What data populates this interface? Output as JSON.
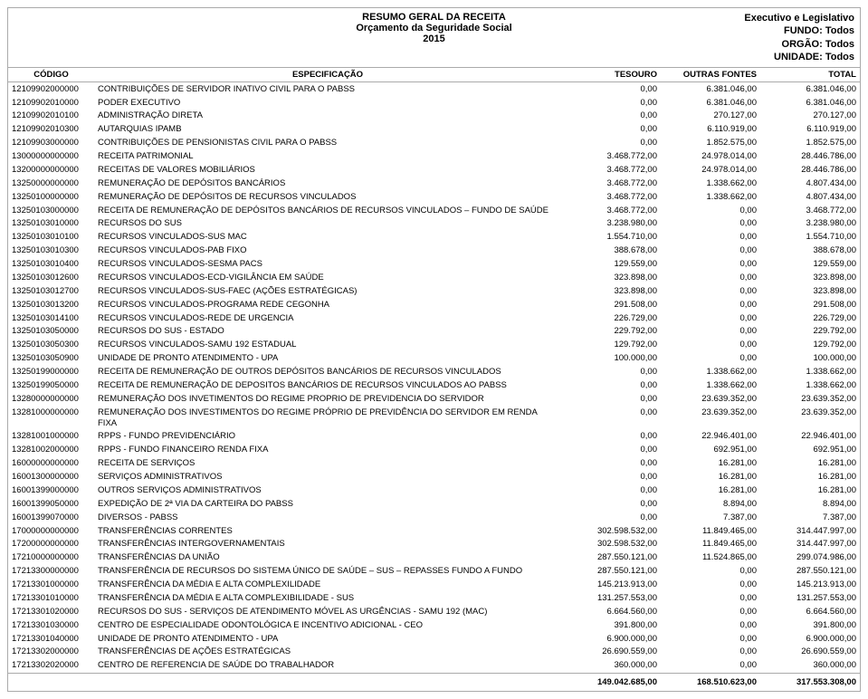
{
  "header": {
    "title1": "RESUMO GERAL DA RECEITA",
    "title2": "Orçamento da Seguridade Social",
    "year": "2015",
    "right1": "Executivo e Legislativo",
    "right2": "FUNDO: Todos",
    "right3": "ORGÃO: Todos",
    "right4": "UNIDADE: Todos"
  },
  "columns": {
    "codigo": "CÓDIGO",
    "espec": "ESPECIFICAÇÃO",
    "tesouro": "TESOURO",
    "outras": "OUTRAS FONTES",
    "total": "TOTAL"
  },
  "rows": [
    {
      "c": "12109902000000",
      "e": "CONTRIBUIÇÕES DE SERVIDOR INATIVO CIVIL PARA O PABSS",
      "t": "0,00",
      "o": "6.381.046,00",
      "x": "6.381.046,00"
    },
    {
      "c": "12109902010000",
      "e": "PODER  EXECUTIVO",
      "t": "0,00",
      "o": "6.381.046,00",
      "x": "6.381.046,00"
    },
    {
      "c": "12109902010100",
      "e": "ADMINISTRAÇÃO DIRETA",
      "t": "0,00",
      "o": "270.127,00",
      "x": "270.127,00"
    },
    {
      "c": "12109902010300",
      "e": "AUTARQUIAS  IPAMB",
      "t": "0,00",
      "o": "6.110.919,00",
      "x": "6.110.919,00"
    },
    {
      "c": "12109903000000",
      "e": "CONTRIBUIÇÕES DE PENSIONISTAS  CIVIL  PARA  O  PABSS",
      "t": "0,00",
      "o": "1.852.575,00",
      "x": "1.852.575,00"
    },
    {
      "c": "13000000000000",
      "e": "RECEITA PATRIMONIAL",
      "t": "3.468.772,00",
      "o": "24.978.014,00",
      "x": "28.446.786,00"
    },
    {
      "c": "13200000000000",
      "e": "RECEITAS DE VALORES MOBILIÁRIOS",
      "t": "3.468.772,00",
      "o": "24.978.014,00",
      "x": "28.446.786,00"
    },
    {
      "c": "13250000000000",
      "e": "REMUNERAÇÃO DE DEPÓSITOS BANCÁRIOS",
      "t": "3.468.772,00",
      "o": "1.338.662,00",
      "x": "4.807.434,00"
    },
    {
      "c": "13250100000000",
      "e": "REMUNERAÇÃO DE DEPÓSITOS DE RECURSOS VINCULADOS",
      "t": "3.468.772,00",
      "o": "1.338.662,00",
      "x": "4.807.434,00"
    },
    {
      "c": "13250103000000",
      "e": "RECEITA DE REMUNERAÇÃO DE DEPÓSITOS BANCÁRIOS DE RECURSOS VINCULADOS – FUNDO DE  SAÚDE",
      "t": "3.468.772,00",
      "o": "0,00",
      "x": "3.468.772,00"
    },
    {
      "c": "13250103010000",
      "e": "RECURSOS DO SUS",
      "t": "3.238.980,00",
      "o": "0,00",
      "x": "3.238.980,00"
    },
    {
      "c": "13250103010100",
      "e": "RECURSOS VINCULADOS-SUS MAC",
      "t": "1.554.710,00",
      "o": "0,00",
      "x": "1.554.710,00"
    },
    {
      "c": "13250103010300",
      "e": "RECURSOS VINCULADOS-PAB FIXO",
      "t": "388.678,00",
      "o": "0,00",
      "x": "388.678,00"
    },
    {
      "c": "13250103010400",
      "e": "RECURSOS VINCULADOS-SESMA PACS",
      "t": "129.559,00",
      "o": "0,00",
      "x": "129.559,00"
    },
    {
      "c": "13250103012600",
      "e": "RECURSOS VINCULADOS-ECD-VIGILÂNCIA EM SAÚDE",
      "t": "323.898,00",
      "o": "0,00",
      "x": "323.898,00"
    },
    {
      "c": "13250103012700",
      "e": "RECURSOS VINCULADOS-SUS-FAEC (AÇÕES ESTRATÉGICAS)",
      "t": "323.898,00",
      "o": "0,00",
      "x": "323.898,00"
    },
    {
      "c": "13250103013200",
      "e": "RECURSOS VINCULADOS-PROGRAMA REDE CEGONHA",
      "t": "291.508,00",
      "o": "0,00",
      "x": "291.508,00"
    },
    {
      "c": "13250103014100",
      "e": "RECURSOS VINCULADOS-REDE DE URGENCIA",
      "t": "226.729,00",
      "o": "0,00",
      "x": "226.729,00"
    },
    {
      "c": "13250103050000",
      "e": "RECURSOS DO SUS - ESTADO",
      "t": "229.792,00",
      "o": "0,00",
      "x": "229.792,00"
    },
    {
      "c": "13250103050300",
      "e": "RECURSOS VINCULADOS-SAMU 192 ESTADUAL",
      "t": "129.792,00",
      "o": "0,00",
      "x": "129.792,00"
    },
    {
      "c": "13250103050900",
      "e": "UNIDADE DE PRONTO ATENDIMENTO - UPA",
      "t": "100.000,00",
      "o": "0,00",
      "x": "100.000,00"
    },
    {
      "c": "13250199000000",
      "e": "RECEITA DE REMUNERAÇÃO DE OUTROS DEPÓSITOS BANCÁRIOS DE RECURSOS VINCULADOS",
      "t": "0,00",
      "o": "1.338.662,00",
      "x": "1.338.662,00"
    },
    {
      "c": "13250199050000",
      "e": "RECEITA DE REMUNERAÇÃO DE DEPOSITOS BANCÁRIOS DE RECURSOS VINCULADOS AO  PABSS",
      "t": "0,00",
      "o": "1.338.662,00",
      "x": "1.338.662,00"
    },
    {
      "c": "13280000000000",
      "e": "REMUNERAÇÃO DOS INVETIMENTOS DO REGIME PROPRIO DE PREVIDENCIA DO SERVIDOR",
      "t": "0,00",
      "o": "23.639.352,00",
      "x": "23.639.352,00"
    },
    {
      "c": "13281000000000",
      "e": "REMUNERAÇÃO DOS INVESTIMENTOS DO REGIME PRÓPRIO DE PREVIDÊNCIA DO SERVIDOR EM RENDA FIXA",
      "t": "0,00",
      "o": "23.639.352,00",
      "x": "23.639.352,00"
    },
    {
      "c": "13281001000000",
      "e": "RPPS - FUNDO PREVIDENCIÁRIO",
      "t": "0,00",
      "o": "22.946.401,00",
      "x": "22.946.401,00"
    },
    {
      "c": "13281002000000",
      "e": "RPPS - FUNDO FINANCEIRO RENDA FIXA",
      "t": "0,00",
      "o": "692.951,00",
      "x": "692.951,00"
    },
    {
      "c": "16000000000000",
      "e": "RECEITA DE SERVIÇOS",
      "t": "0,00",
      "o": "16.281,00",
      "x": "16.281,00"
    },
    {
      "c": "16001300000000",
      "e": "SERVIÇOS ADMINISTRATIVOS",
      "t": "0,00",
      "o": "16.281,00",
      "x": "16.281,00"
    },
    {
      "c": "16001399000000",
      "e": "OUTROS SERVIÇOS ADMINISTRATIVOS",
      "t": "0,00",
      "o": "16.281,00",
      "x": "16.281,00"
    },
    {
      "c": "16001399050000",
      "e": "EXPEDIÇÃO DE 2ª VIA DA CARTEIRA DO PABSS",
      "t": "0,00",
      "o": "8.894,00",
      "x": "8.894,00"
    },
    {
      "c": "16001399070000",
      "e": "DIVERSOS  -  PABSS",
      "t": "0,00",
      "o": "7.387,00",
      "x": "7.387,00"
    },
    {
      "c": "17000000000000",
      "e": "TRANSFERÊNCIAS CORRENTES",
      "t": "302.598.532,00",
      "o": "11.849.465,00",
      "x": "314.447.997,00"
    },
    {
      "c": "17200000000000",
      "e": "TRANSFERÊNCIAS INTERGOVERNAMENTAIS",
      "t": "302.598.532,00",
      "o": "11.849.465,00",
      "x": "314.447.997,00"
    },
    {
      "c": "17210000000000",
      "e": "TRANSFERÊNCIAS DA UNIÃO",
      "t": "287.550.121,00",
      "o": "11.524.865,00",
      "x": "299.074.986,00"
    },
    {
      "c": "17213300000000",
      "e": "TRANSFERÊNCIA DE RECURSOS DO SISTEMA ÚNICO DE SAÚDE – SUS – REPASSES FUNDO A FUNDO",
      "t": "287.550.121,00",
      "o": "0,00",
      "x": "287.550.121,00"
    },
    {
      "c": "17213301000000",
      "e": "TRANSFERÊNCIA DA MÉDIA E ALTA COMPLEXILIDADE",
      "t": "145.213.913,00",
      "o": "0,00",
      "x": "145.213.913,00"
    },
    {
      "c": "17213301010000",
      "e": "TRANSFERÊNCIA DA MÉDIA E ALTA COMPLEXIBILIDADE - SUS",
      "t": "131.257.553,00",
      "o": "0,00",
      "x": "131.257.553,00"
    },
    {
      "c": "17213301020000",
      "e": "RECURSOS DO SUS - SERVIÇOS DE ATENDIMENTO MÓVEL AS URGÊNCIAS - SAMU 192 (MAC)",
      "t": "6.664.560,00",
      "o": "0,00",
      "x": "6.664.560,00"
    },
    {
      "c": "17213301030000",
      "e": "CENTRO DE ESPECIALIDADE ODONTOLÓGICA E INCENTIVO ADICIONAL - CEO",
      "t": "391.800,00",
      "o": "0,00",
      "x": "391.800,00"
    },
    {
      "c": "17213301040000",
      "e": "UNIDADE DE PRONTO ATENDIMENTO - UPA",
      "t": "6.900.000,00",
      "o": "0,00",
      "x": "6.900.000,00"
    },
    {
      "c": "17213302000000",
      "e": "TRANSFERÊNCIAS DE AÇÕES ESTRATÉGICAS",
      "t": "26.690.559,00",
      "o": "0,00",
      "x": "26.690.559,00"
    },
    {
      "c": "17213302020000",
      "e": "CENTRO DE REFERENCIA DE SAÚDE DO TRABALHADOR",
      "t": "360.000,00",
      "o": "0,00",
      "x": "360.000,00"
    }
  ],
  "totals": {
    "tesouro": "149.042.685,00",
    "outras": "168.510.623,00",
    "total": "317.553.308,00"
  }
}
